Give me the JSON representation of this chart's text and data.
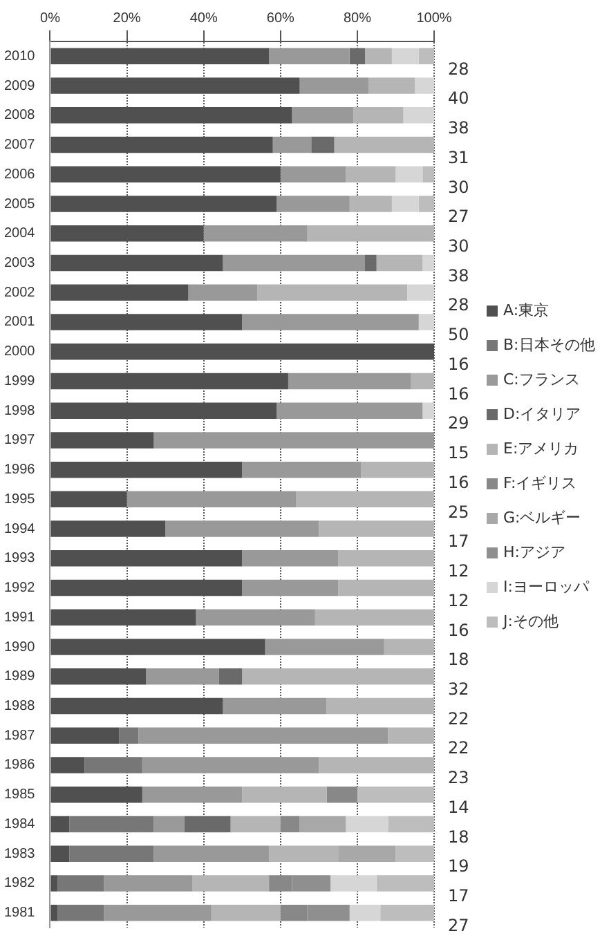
{
  "chart_data": {
    "type": "bar",
    "orientation": "horizontal",
    "stacked": true,
    "legend": "right",
    "grid": "x",
    "categories": [
      "2010",
      "2009",
      "2008",
      "2007",
      "2006",
      "2005",
      "2004",
      "2003",
      "2002",
      "2001",
      "2000",
      "1999",
      "1998",
      "1997",
      "1996",
      "1995",
      "1994",
      "1993",
      "1992",
      "1991",
      "1990",
      "1989",
      "1988",
      "1987",
      "1986",
      "1985",
      "1984",
      "1983",
      "1982",
      "1981"
    ],
    "xlim": [
      0,
      100
    ],
    "xticks": [
      {
        "value": 0,
        "label": "0%"
      },
      {
        "value": 20,
        "label": "20%"
      },
      {
        "value": 40,
        "label": "40%"
      },
      {
        "value": 60,
        "label": "60%"
      },
      {
        "value": 80,
        "label": "80%"
      },
      {
        "value": 100,
        "label": "100%"
      }
    ],
    "annotations": [
      "28",
      "40",
      "38",
      "31",
      "30",
      "27",
      "30",
      "38",
      "28",
      "50",
      "16",
      "16",
      "29",
      "15",
      "16",
      "25",
      "17",
      "12",
      "12",
      "16",
      "18",
      "32",
      "22",
      "22",
      "23",
      "14",
      "18",
      "19",
      "17",
      "27"
    ],
    "series": [
      {
        "name": "A:東京",
        "color": "#505050",
        "values": [
          57,
          65,
          63,
          58,
          60,
          59,
          40,
          45,
          36,
          50,
          100,
          62,
          59,
          27,
          50,
          20,
          30,
          50,
          50,
          38,
          56,
          25,
          45,
          18,
          9,
          24,
          5,
          5,
          2,
          2
        ]
      },
      {
        "name": "B:日本その他",
        "color": "#777777",
        "values": [
          0,
          0,
          0,
          0,
          0,
          0,
          0,
          0,
          0,
          0,
          0,
          0,
          0,
          0,
          0,
          0,
          0,
          0,
          0,
          0,
          0,
          0,
          0,
          5,
          15,
          0,
          22,
          22,
          12,
          12
        ]
      },
      {
        "name": "C:フランス",
        "color": "#999999",
        "values": [
          21,
          18,
          16,
          10,
          17,
          19,
          27,
          37,
          18,
          46,
          0,
          32,
          38,
          73,
          31,
          44,
          40,
          25,
          25,
          31,
          31,
          19,
          27,
          65,
          46,
          26,
          8,
          30,
          23,
          28
        ]
      },
      {
        "name": "D:イタリア",
        "color": "#6a6a6a",
        "values": [
          4,
          0,
          0,
          6,
          0,
          0,
          0,
          3,
          0,
          0,
          0,
          0,
          0,
          0,
          0,
          0,
          0,
          0,
          0,
          0,
          0,
          6,
          0,
          0,
          0,
          0,
          12,
          0,
          0,
          0
        ]
      },
      {
        "name": "E:アメリカ",
        "color": "#b5b5b5",
        "values": [
          7,
          12,
          13,
          26,
          13,
          11,
          33,
          12,
          39,
          0,
          0,
          6,
          0,
          0,
          19,
          36,
          30,
          25,
          25,
          31,
          13,
          50,
          28,
          12,
          30,
          22,
          13,
          18,
          20,
          18
        ]
      },
      {
        "name": "F:イギリス",
        "color": "#888888",
        "values": [
          0,
          0,
          0,
          0,
          0,
          0,
          0,
          0,
          0,
          0,
          0,
          0,
          0,
          0,
          0,
          0,
          0,
          0,
          0,
          0,
          0,
          0,
          0,
          0,
          0,
          8,
          5,
          0,
          6,
          7
        ]
      },
      {
        "name": "G:ベルギー",
        "color": "#a8a8a8",
        "values": [
          0,
          0,
          0,
          0,
          0,
          0,
          0,
          0,
          0,
          0,
          0,
          0,
          0,
          0,
          0,
          0,
          0,
          0,
          0,
          0,
          0,
          0,
          0,
          0,
          0,
          0,
          12,
          15,
          0,
          0
        ]
      },
      {
        "name": "H:アジア",
        "color": "#8f8f8f",
        "values": [
          0,
          0,
          0,
          0,
          0,
          0,
          0,
          0,
          0,
          0,
          0,
          0,
          0,
          0,
          0,
          0,
          0,
          0,
          0,
          0,
          0,
          0,
          0,
          0,
          0,
          0,
          0,
          0,
          10,
          11
        ]
      },
      {
        "name": "I:ヨーロッパ",
        "color": "#d6d6d6",
        "values": [
          7,
          5,
          8,
          0,
          7,
          7,
          0,
          3,
          7,
          4,
          0,
          0,
          3,
          0,
          0,
          0,
          0,
          0,
          0,
          0,
          0,
          0,
          0,
          0,
          0,
          0,
          11,
          0,
          12,
          8
        ]
      },
      {
        "name": "J:その他",
        "color": "#bdbdbd",
        "values": [
          4,
          0,
          0,
          0,
          3,
          4,
          0,
          0,
          0,
          0,
          0,
          0,
          0,
          0,
          0,
          0,
          0,
          0,
          0,
          0,
          0,
          0,
          0,
          0,
          0,
          20,
          12,
          10,
          15,
          14
        ]
      }
    ]
  }
}
